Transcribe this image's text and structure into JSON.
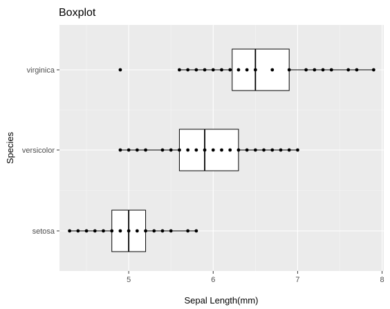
{
  "chart_data": {
    "type": "boxplot",
    "title": "Boxplot",
    "xlabel": "Sepal Length(mm)",
    "ylabel": "Species",
    "orientation": "horizontal",
    "xlim": [
      4.18,
      8.02
    ],
    "x_ticks": [
      5,
      6,
      7,
      8
    ],
    "x_tick_labels": [
      "5",
      "6",
      "7",
      "8"
    ],
    "categories": [
      "setosa",
      "versicolor",
      "virginica"
    ],
    "grid": true,
    "background": "#ebebeb",
    "series": [
      {
        "category": "setosa",
        "min": 4.3,
        "q1": 4.8,
        "median": 5.0,
        "q3": 5.2,
        "max": 5.8,
        "points": [
          4.3,
          4.4,
          4.5,
          4.6,
          4.7,
          4.8,
          4.9,
          5.0,
          5.1,
          5.2,
          5.3,
          5.4,
          5.5,
          5.7,
          5.8
        ]
      },
      {
        "category": "versicolor",
        "min": 4.9,
        "q1": 5.6,
        "median": 5.9,
        "q3": 6.3,
        "max": 7.0,
        "points": [
          4.9,
          5.0,
          5.1,
          5.2,
          5.4,
          5.5,
          5.6,
          5.7,
          5.8,
          5.9,
          6.0,
          6.1,
          6.2,
          6.3,
          6.4,
          6.5,
          6.6,
          6.7,
          6.8,
          6.9,
          7.0
        ]
      },
      {
        "category": "virginica",
        "min": 5.6,
        "q1": 6.225,
        "median": 6.5,
        "q3": 6.9,
        "max": 7.9,
        "outliers": [
          4.9
        ],
        "points": [
          4.9,
          5.6,
          5.7,
          5.8,
          5.9,
          6.0,
          6.1,
          6.2,
          6.3,
          6.4,
          6.5,
          6.7,
          6.9,
          7.1,
          7.2,
          7.3,
          7.4,
          7.6,
          7.7,
          7.9
        ]
      }
    ]
  }
}
